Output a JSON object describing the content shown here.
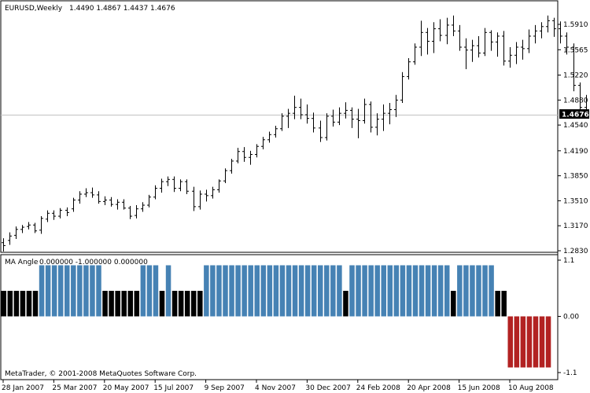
{
  "window": {
    "title": "EURUSD,Weekly",
    "ohlc": "1.4490 1.4867 1.4437 1.4676",
    "copyright": "MetaTrader, © 2001-2008 MetaQuotes Software Corp."
  },
  "chart_data": [
    {
      "type": "candlestick",
      "symbol": "EURUSD",
      "timeframe": "Weekly",
      "title": "EURUSD,Weekly",
      "bar_style": "ohlc-bars",
      "y_ticks": [
        "1.5910",
        "1.5565",
        "1.5220",
        "1.4880",
        "1.4540",
        "1.4190",
        "1.3850",
        "1.3510",
        "1.3170",
        "1.2830"
      ],
      "ylim": [
        1.275,
        1.61
      ],
      "current_price": 1.4676,
      "current_price_label": "1.4676",
      "x_ticks": [
        "28 Jan 2007",
        "25 Mar 2007",
        "20 May 2007",
        "15 Jul 2007",
        "9 Sep 2007",
        "4 Nov 2007",
        "30 Dec 2007",
        "24 Feb 2008",
        "20 Apr 2008",
        "15 Jun 2008",
        "10 Aug 2008"
      ],
      "x_tick_bar_index": [
        0,
        8,
        16,
        24,
        32,
        40,
        48,
        56,
        64,
        72,
        80
      ],
      "bars": [
        {
          "o": 1.294,
          "h": 1.3,
          "l": 1.282,
          "c": 1.29
        },
        {
          "o": 1.297,
          "h": 1.308,
          "l": 1.291,
          "c": 1.303
        },
        {
          "o": 1.304,
          "h": 1.316,
          "l": 1.299,
          "c": 1.312
        },
        {
          "o": 1.312,
          "h": 1.318,
          "l": 1.307,
          "c": 1.315
        },
        {
          "o": 1.316,
          "h": 1.322,
          "l": 1.312,
          "c": 1.318
        },
        {
          "o": 1.318,
          "h": 1.321,
          "l": 1.307,
          "c": 1.31
        },
        {
          "o": 1.311,
          "h": 1.33,
          "l": 1.306,
          "c": 1.327
        },
        {
          "o": 1.326,
          "h": 1.338,
          "l": 1.322,
          "c": 1.334
        },
        {
          "o": 1.334,
          "h": 1.338,
          "l": 1.325,
          "c": 1.33
        },
        {
          "o": 1.33,
          "h": 1.341,
          "l": 1.327,
          "c": 1.338
        },
        {
          "o": 1.338,
          "h": 1.342,
          "l": 1.33,
          "c": 1.335
        },
        {
          "o": 1.34,
          "h": 1.355,
          "l": 1.336,
          "c": 1.352
        },
        {
          "o": 1.352,
          "h": 1.364,
          "l": 1.347,
          "c": 1.36
        },
        {
          "o": 1.36,
          "h": 1.368,
          "l": 1.356,
          "c": 1.362
        },
        {
          "o": 1.362,
          "h": 1.369,
          "l": 1.355,
          "c": 1.359
        },
        {
          "o": 1.359,
          "h": 1.364,
          "l": 1.347,
          "c": 1.35
        },
        {
          "o": 1.35,
          "h": 1.357,
          "l": 1.345,
          "c": 1.352
        },
        {
          "o": 1.352,
          "h": 1.356,
          "l": 1.343,
          "c": 1.346
        },
        {
          "o": 1.346,
          "h": 1.353,
          "l": 1.339,
          "c": 1.349
        },
        {
          "o": 1.349,
          "h": 1.353,
          "l": 1.339,
          "c": 1.341
        },
        {
          "o": 1.341,
          "h": 1.344,
          "l": 1.326,
          "c": 1.33
        },
        {
          "o": 1.331,
          "h": 1.345,
          "l": 1.327,
          "c": 1.34
        },
        {
          "o": 1.34,
          "h": 1.349,
          "l": 1.336,
          "c": 1.345
        },
        {
          "o": 1.345,
          "h": 1.359,
          "l": 1.342,
          "c": 1.356
        },
        {
          "o": 1.356,
          "h": 1.372,
          "l": 1.353,
          "c": 1.368
        },
        {
          "o": 1.368,
          "h": 1.381,
          "l": 1.362,
          "c": 1.377
        },
        {
          "o": 1.377,
          "h": 1.384,
          "l": 1.371,
          "c": 1.38
        },
        {
          "o": 1.38,
          "h": 1.384,
          "l": 1.363,
          "c": 1.368
        },
        {
          "o": 1.368,
          "h": 1.38,
          "l": 1.364,
          "c": 1.377
        },
        {
          "o": 1.377,
          "h": 1.38,
          "l": 1.36,
          "c": 1.364
        },
        {
          "o": 1.364,
          "h": 1.37,
          "l": 1.337,
          "c": 1.343
        },
        {
          "o": 1.343,
          "h": 1.365,
          "l": 1.339,
          "c": 1.36
        },
        {
          "o": 1.36,
          "h": 1.366,
          "l": 1.35,
          "c": 1.358
        },
        {
          "o": 1.358,
          "h": 1.37,
          "l": 1.354,
          "c": 1.366
        },
        {
          "o": 1.366,
          "h": 1.38,
          "l": 1.362,
          "c": 1.378
        },
        {
          "o": 1.378,
          "h": 1.395,
          "l": 1.375,
          "c": 1.392
        },
        {
          "o": 1.392,
          "h": 1.408,
          "l": 1.388,
          "c": 1.405
        },
        {
          "o": 1.405,
          "h": 1.423,
          "l": 1.402,
          "c": 1.418
        },
        {
          "o": 1.418,
          "h": 1.424,
          "l": 1.404,
          "c": 1.41
        },
        {
          "o": 1.41,
          "h": 1.419,
          "l": 1.4,
          "c": 1.414
        },
        {
          "o": 1.414,
          "h": 1.428,
          "l": 1.41,
          "c": 1.425
        },
        {
          "o": 1.425,
          "h": 1.438,
          "l": 1.421,
          "c": 1.434
        },
        {
          "o": 1.434,
          "h": 1.445,
          "l": 1.43,
          "c": 1.441
        },
        {
          "o": 1.441,
          "h": 1.453,
          "l": 1.437,
          "c": 1.449
        },
        {
          "o": 1.449,
          "h": 1.47,
          "l": 1.446,
          "c": 1.466
        },
        {
          "o": 1.466,
          "h": 1.476,
          "l": 1.45,
          "c": 1.47
        },
        {
          "o": 1.47,
          "h": 1.494,
          "l": 1.462,
          "c": 1.478
        },
        {
          "o": 1.478,
          "h": 1.49,
          "l": 1.462,
          "c": 1.468
        },
        {
          "o": 1.468,
          "h": 1.482,
          "l": 1.456,
          "c": 1.463
        },
        {
          "o": 1.463,
          "h": 1.471,
          "l": 1.444,
          "c": 1.45
        },
        {
          "o": 1.45,
          "h": 1.46,
          "l": 1.431,
          "c": 1.437
        },
        {
          "o": 1.437,
          "h": 1.47,
          "l": 1.433,
          "c": 1.466
        },
        {
          "o": 1.466,
          "h": 1.475,
          "l": 1.452,
          "c": 1.458
        },
        {
          "o": 1.458,
          "h": 1.478,
          "l": 1.454,
          "c": 1.47
        },
        {
          "o": 1.47,
          "h": 1.485,
          "l": 1.463,
          "c": 1.474
        },
        {
          "o": 1.474,
          "h": 1.478,
          "l": 1.45,
          "c": 1.462
        },
        {
          "o": 1.462,
          "h": 1.476,
          "l": 1.436,
          "c": 1.46
        },
        {
          "o": 1.46,
          "h": 1.49,
          "l": 1.456,
          "c": 1.482
        },
        {
          "o": 1.482,
          "h": 1.486,
          "l": 1.444,
          "c": 1.451
        },
        {
          "o": 1.451,
          "h": 1.47,
          "l": 1.44,
          "c": 1.462
        },
        {
          "o": 1.462,
          "h": 1.482,
          "l": 1.446,
          "c": 1.47
        },
        {
          "o": 1.47,
          "h": 1.484,
          "l": 1.455,
          "c": 1.475
        },
        {
          "o": 1.475,
          "h": 1.495,
          "l": 1.465,
          "c": 1.488
        },
        {
          "o": 1.488,
          "h": 1.526,
          "l": 1.484,
          "c": 1.52
        },
        {
          "o": 1.52,
          "h": 1.545,
          "l": 1.516,
          "c": 1.54
        },
        {
          "o": 1.54,
          "h": 1.565,
          "l": 1.536,
          "c": 1.56
        },
        {
          "o": 1.56,
          "h": 1.596,
          "l": 1.548,
          "c": 1.58
        },
        {
          "o": 1.58,
          "h": 1.586,
          "l": 1.55,
          "c": 1.568
        },
        {
          "o": 1.568,
          "h": 1.594,
          "l": 1.552,
          "c": 1.585
        },
        {
          "o": 1.585,
          "h": 1.598,
          "l": 1.568,
          "c": 1.576
        },
        {
          "o": 1.576,
          "h": 1.6,
          "l": 1.564,
          "c": 1.59
        },
        {
          "o": 1.59,
          "h": 1.603,
          "l": 1.575,
          "c": 1.582
        },
        {
          "o": 1.582,
          "h": 1.59,
          "l": 1.555,
          "c": 1.56
        },
        {
          "o": 1.56,
          "h": 1.572,
          "l": 1.53,
          "c": 1.556
        },
        {
          "o": 1.556,
          "h": 1.57,
          "l": 1.54,
          "c": 1.562
        },
        {
          "o": 1.562,
          "h": 1.575,
          "l": 1.546,
          "c": 1.552
        },
        {
          "o": 1.552,
          "h": 1.586,
          "l": 1.548,
          "c": 1.58
        },
        {
          "o": 1.58,
          "h": 1.583,
          "l": 1.555,
          "c": 1.567
        },
        {
          "o": 1.567,
          "h": 1.58,
          "l": 1.547,
          "c": 1.575
        },
        {
          "o": 1.575,
          "h": 1.582,
          "l": 1.535,
          "c": 1.541
        },
        {
          "o": 1.541,
          "h": 1.56,
          "l": 1.532,
          "c": 1.549
        },
        {
          "o": 1.549,
          "h": 1.567,
          "l": 1.537,
          "c": 1.56
        },
        {
          "o": 1.56,
          "h": 1.57,
          "l": 1.543,
          "c": 1.558
        },
        {
          "o": 1.558,
          "h": 1.584,
          "l": 1.552,
          "c": 1.575
        },
        {
          "o": 1.575,
          "h": 1.59,
          "l": 1.565,
          "c": 1.582
        },
        {
          "o": 1.582,
          "h": 1.594,
          "l": 1.572,
          "c": 1.588
        },
        {
          "o": 1.588,
          "h": 1.603,
          "l": 1.58,
          "c": 1.596
        },
        {
          "o": 1.596,
          "h": 1.6,
          "l": 1.574,
          "c": 1.585
        },
        {
          "o": 1.585,
          "h": 1.595,
          "l": 1.565,
          "c": 1.575
        },
        {
          "o": 1.575,
          "h": 1.58,
          "l": 1.55,
          "c": 1.56
        },
        {
          "o": 1.56,
          "h": 1.565,
          "l": 1.5,
          "c": 1.508
        },
        {
          "o": 1.508,
          "h": 1.512,
          "l": 1.465,
          "c": 1.478
        },
        {
          "o": 1.478,
          "h": 1.495,
          "l": 1.463,
          "c": 1.468
        },
        {
          "o": 1.468,
          "h": 1.486,
          "l": 1.455,
          "c": 1.472
        },
        {
          "o": 1.472,
          "h": 1.48,
          "l": 1.44,
          "c": 1.449
        },
        {
          "o": 1.449,
          "h": 1.452,
          "l": 1.415,
          "c": 1.42
        },
        {
          "o": 1.42,
          "h": 1.438,
          "l": 1.388,
          "c": 1.43
        },
        {
          "o": 1.43,
          "h": 1.45,
          "l": 1.41,
          "c": 1.445
        },
        {
          "o": 1.449,
          "h": 1.4867,
          "l": 1.4437,
          "c": 1.4676
        }
      ]
    },
    {
      "type": "bar",
      "title": "MA Angle",
      "header_values": "0.000000 -1.000000 0.000000",
      "y_ticks": [
        "1.1",
        "0.00",
        "-1.1"
      ],
      "ylim": [
        -1.1,
        1.1
      ],
      "colors": {
        "1": "#4682b4",
        "0.5": "#000000",
        "-1": "#b22222"
      },
      "values": [
        0.5,
        0.5,
        0.5,
        0.5,
        0.5,
        0.5,
        1,
        1,
        1,
        1,
        1,
        1,
        1,
        1,
        1,
        1,
        0.5,
        0.5,
        0.5,
        0.5,
        0.5,
        0.5,
        1,
        1,
        1,
        0.5,
        1,
        0.5,
        0.5,
        0.5,
        0.5,
        0.5,
        1,
        1,
        1,
        1,
        1,
        1,
        1,
        1,
        1,
        1,
        1,
        1,
        1,
        1,
        1,
        1,
        1,
        1,
        1,
        1,
        1,
        1,
        0.5,
        1,
        1,
        1,
        1,
        1,
        1,
        1,
        1,
        1,
        1,
        1,
        1,
        1,
        1,
        1,
        1,
        0.5,
        1,
        1,
        1,
        1,
        1,
        1,
        0.5,
        0.5,
        -1,
        -1,
        -1,
        -1,
        -1,
        -1,
        -1
      ]
    }
  ]
}
